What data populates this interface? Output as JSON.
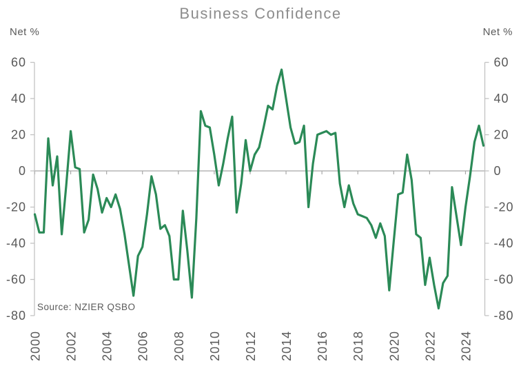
{
  "title": "Business Confidence",
  "unit_label_left": "Net %",
  "unit_label_right": "Net %",
  "source_note": "Source: NZIER QSBO",
  "colors": {
    "line": "#2b8a57",
    "axis_line": "#c2c2c2",
    "zero_line": "#a8a8a8",
    "labels": "#595959",
    "title": "#8c8c8c"
  },
  "chart_data": {
    "type": "line",
    "title": "Business Confidence",
    "ylabel": "Net %",
    "series_name": "Business confidence (net %)",
    "frequency": "quarterly",
    "start": "2000 Q1",
    "end": "2025 Q1",
    "ylim": [
      -80,
      60
    ],
    "y_ticks": [
      60,
      40,
      20,
      0,
      -20,
      -40,
      -60,
      -80
    ],
    "x_tick_years": [
      2000,
      2002,
      2004,
      2006,
      2008,
      2010,
      2012,
      2014,
      2016,
      2018,
      2020,
      2022,
      2024
    ],
    "grid": "zero-line-only",
    "legend": "none",
    "values": [
      -24,
      -34,
      -34,
      18,
      -8,
      8,
      -35,
      -8,
      22,
      2,
      1,
      -34,
      -27,
      -2,
      -10,
      -23,
      -15,
      -20,
      -13,
      -21,
      -35,
      -52,
      -69,
      -47,
      -42,
      -24,
      -3,
      -13,
      -32,
      -30,
      -36,
      -60,
      -60,
      -22,
      -44,
      -70,
      -26,
      33,
      25,
      24,
      9,
      -8,
      4,
      18,
      30,
      -23,
      -7,
      17,
      0,
      9,
      13,
      24,
      36,
      34,
      47,
      56,
      40,
      24,
      15,
      16,
      25,
      -20,
      4,
      20,
      21,
      22,
      20,
      21,
      -7,
      -20,
      -8,
      -18,
      -24,
      -25,
      -26,
      -30,
      -37,
      -29,
      -36,
      -66,
      -39,
      -13,
      -12,
      9,
      -5,
      -35,
      -37,
      -63,
      -48,
      -63,
      -76,
      -62,
      -58,
      -9,
      -25,
      -41,
      -20,
      -3,
      16,
      25,
      14
    ]
  }
}
